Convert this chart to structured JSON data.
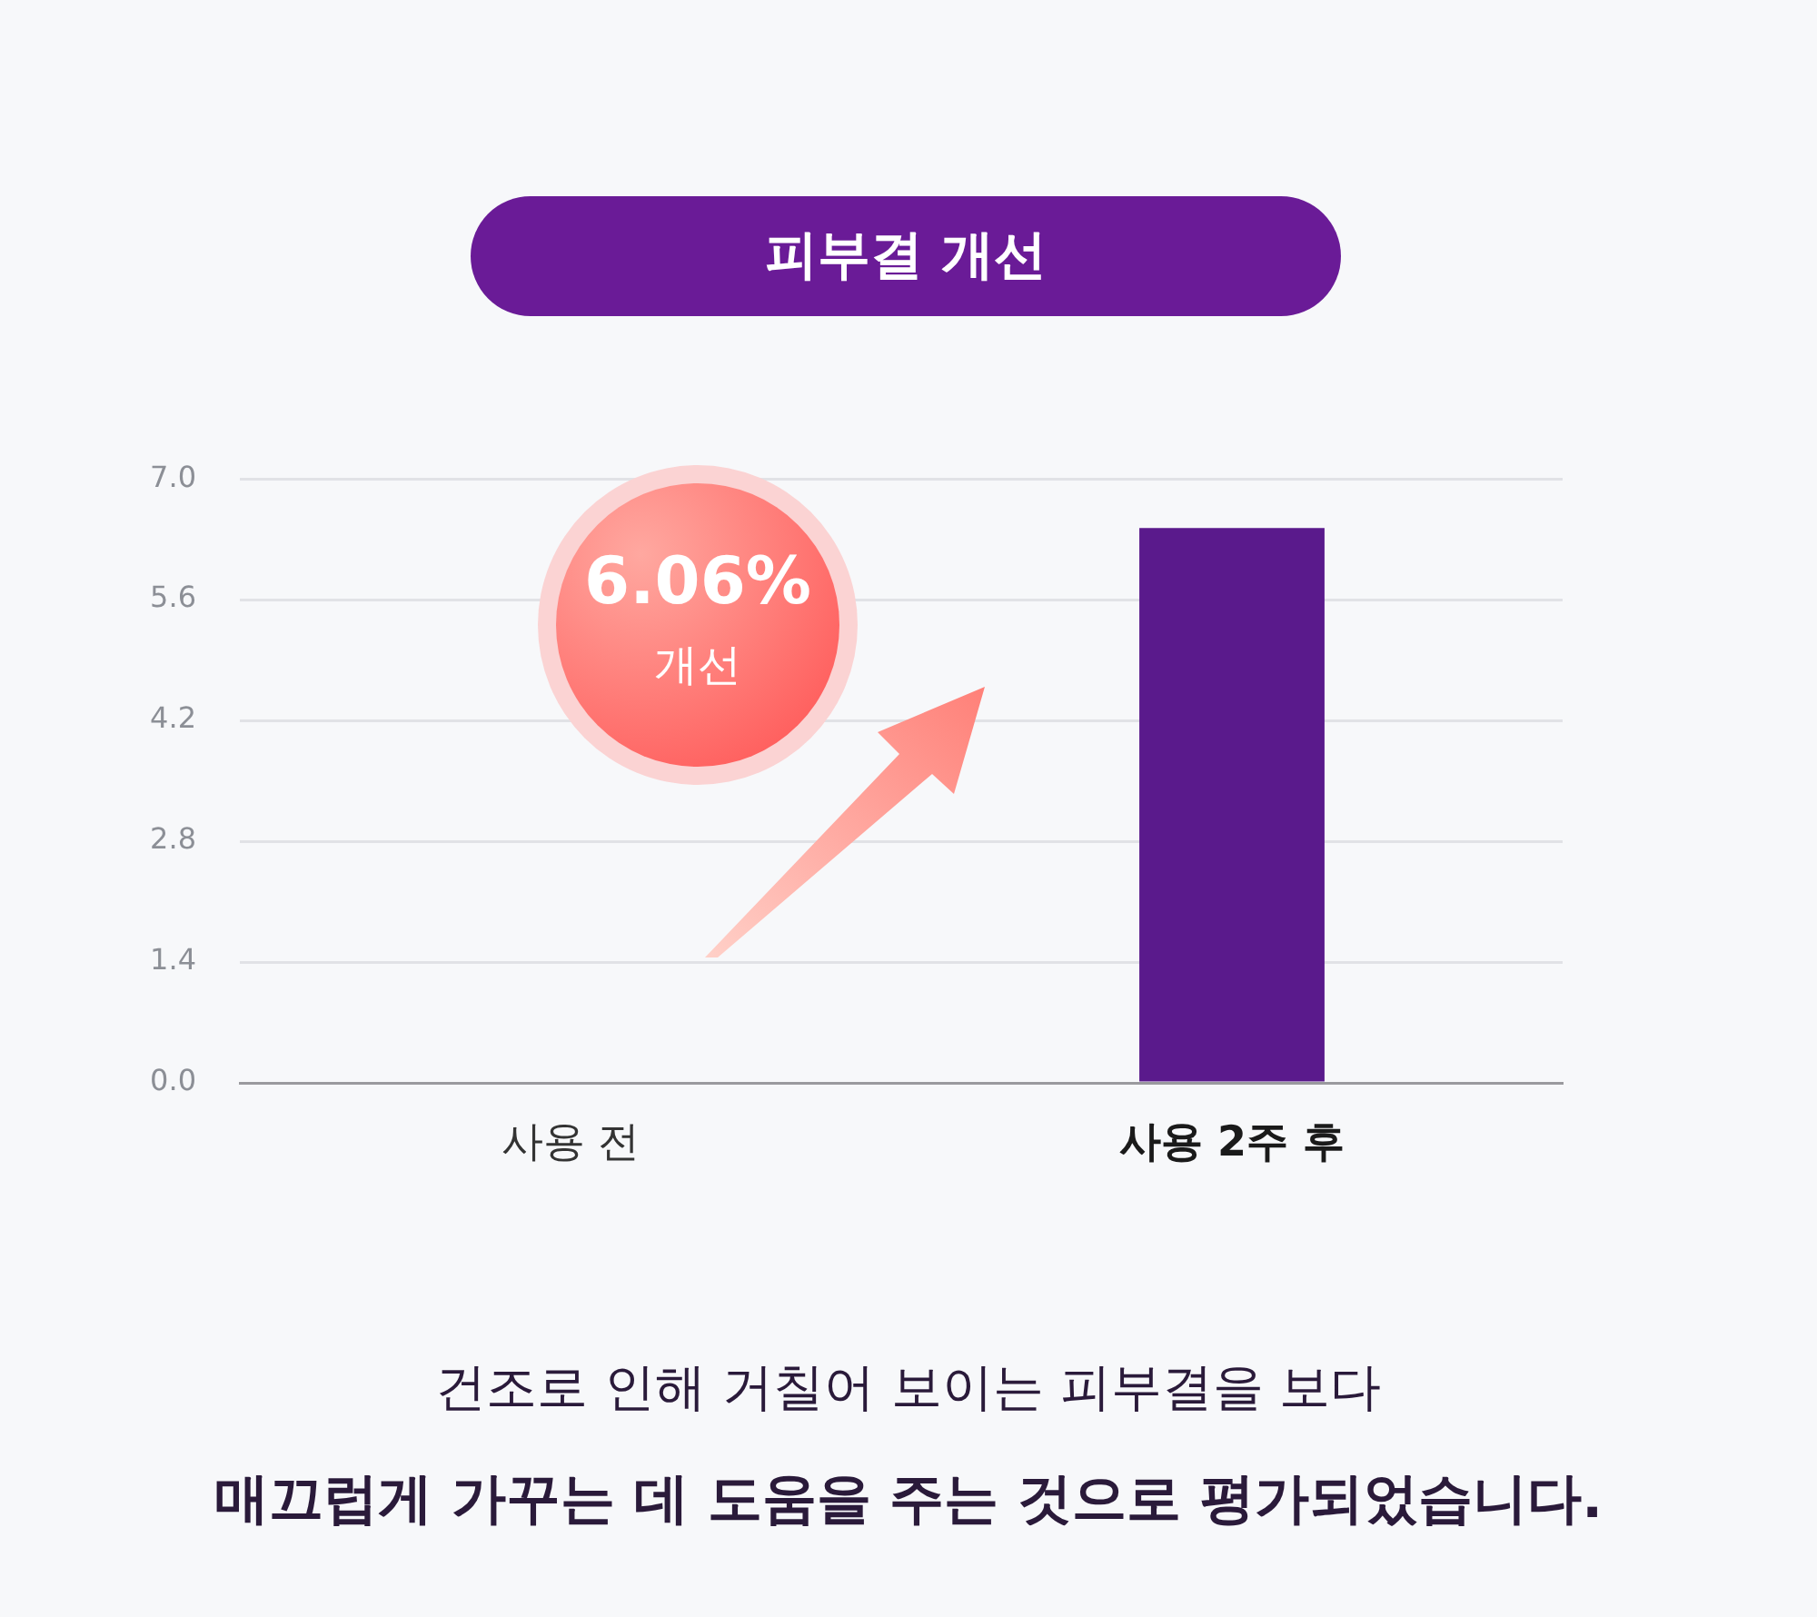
{
  "chart_data": {
    "type": "bar",
    "title": "피부결 개선",
    "categories": [
      "사용 전",
      "사용 2주 후"
    ],
    "values": [
      0,
      6.43
    ],
    "color": "#5a1a8c",
    "ylim": [
      0,
      7
    ],
    "yticks": [
      {
        "value": 0,
        "label": "0.0"
      },
      {
        "value": 1.4,
        "label": "1.4"
      },
      {
        "value": 2.8,
        "label": "2.8"
      },
      {
        "value": 4.2,
        "label": "4.2"
      },
      {
        "value": 5.6,
        "label": "5.6"
      },
      {
        "value": 7,
        "label": "7.0"
      }
    ],
    "grid": "y",
    "legend": false,
    "annotations": [
      "6.06%",
      "개선",
      "건조로 인해 거칠어 보이는 피부결을 보다",
      "매끄럽게 가꾸는 데 도움을 주는 것으로 평가되었습니다."
    ]
  }
}
